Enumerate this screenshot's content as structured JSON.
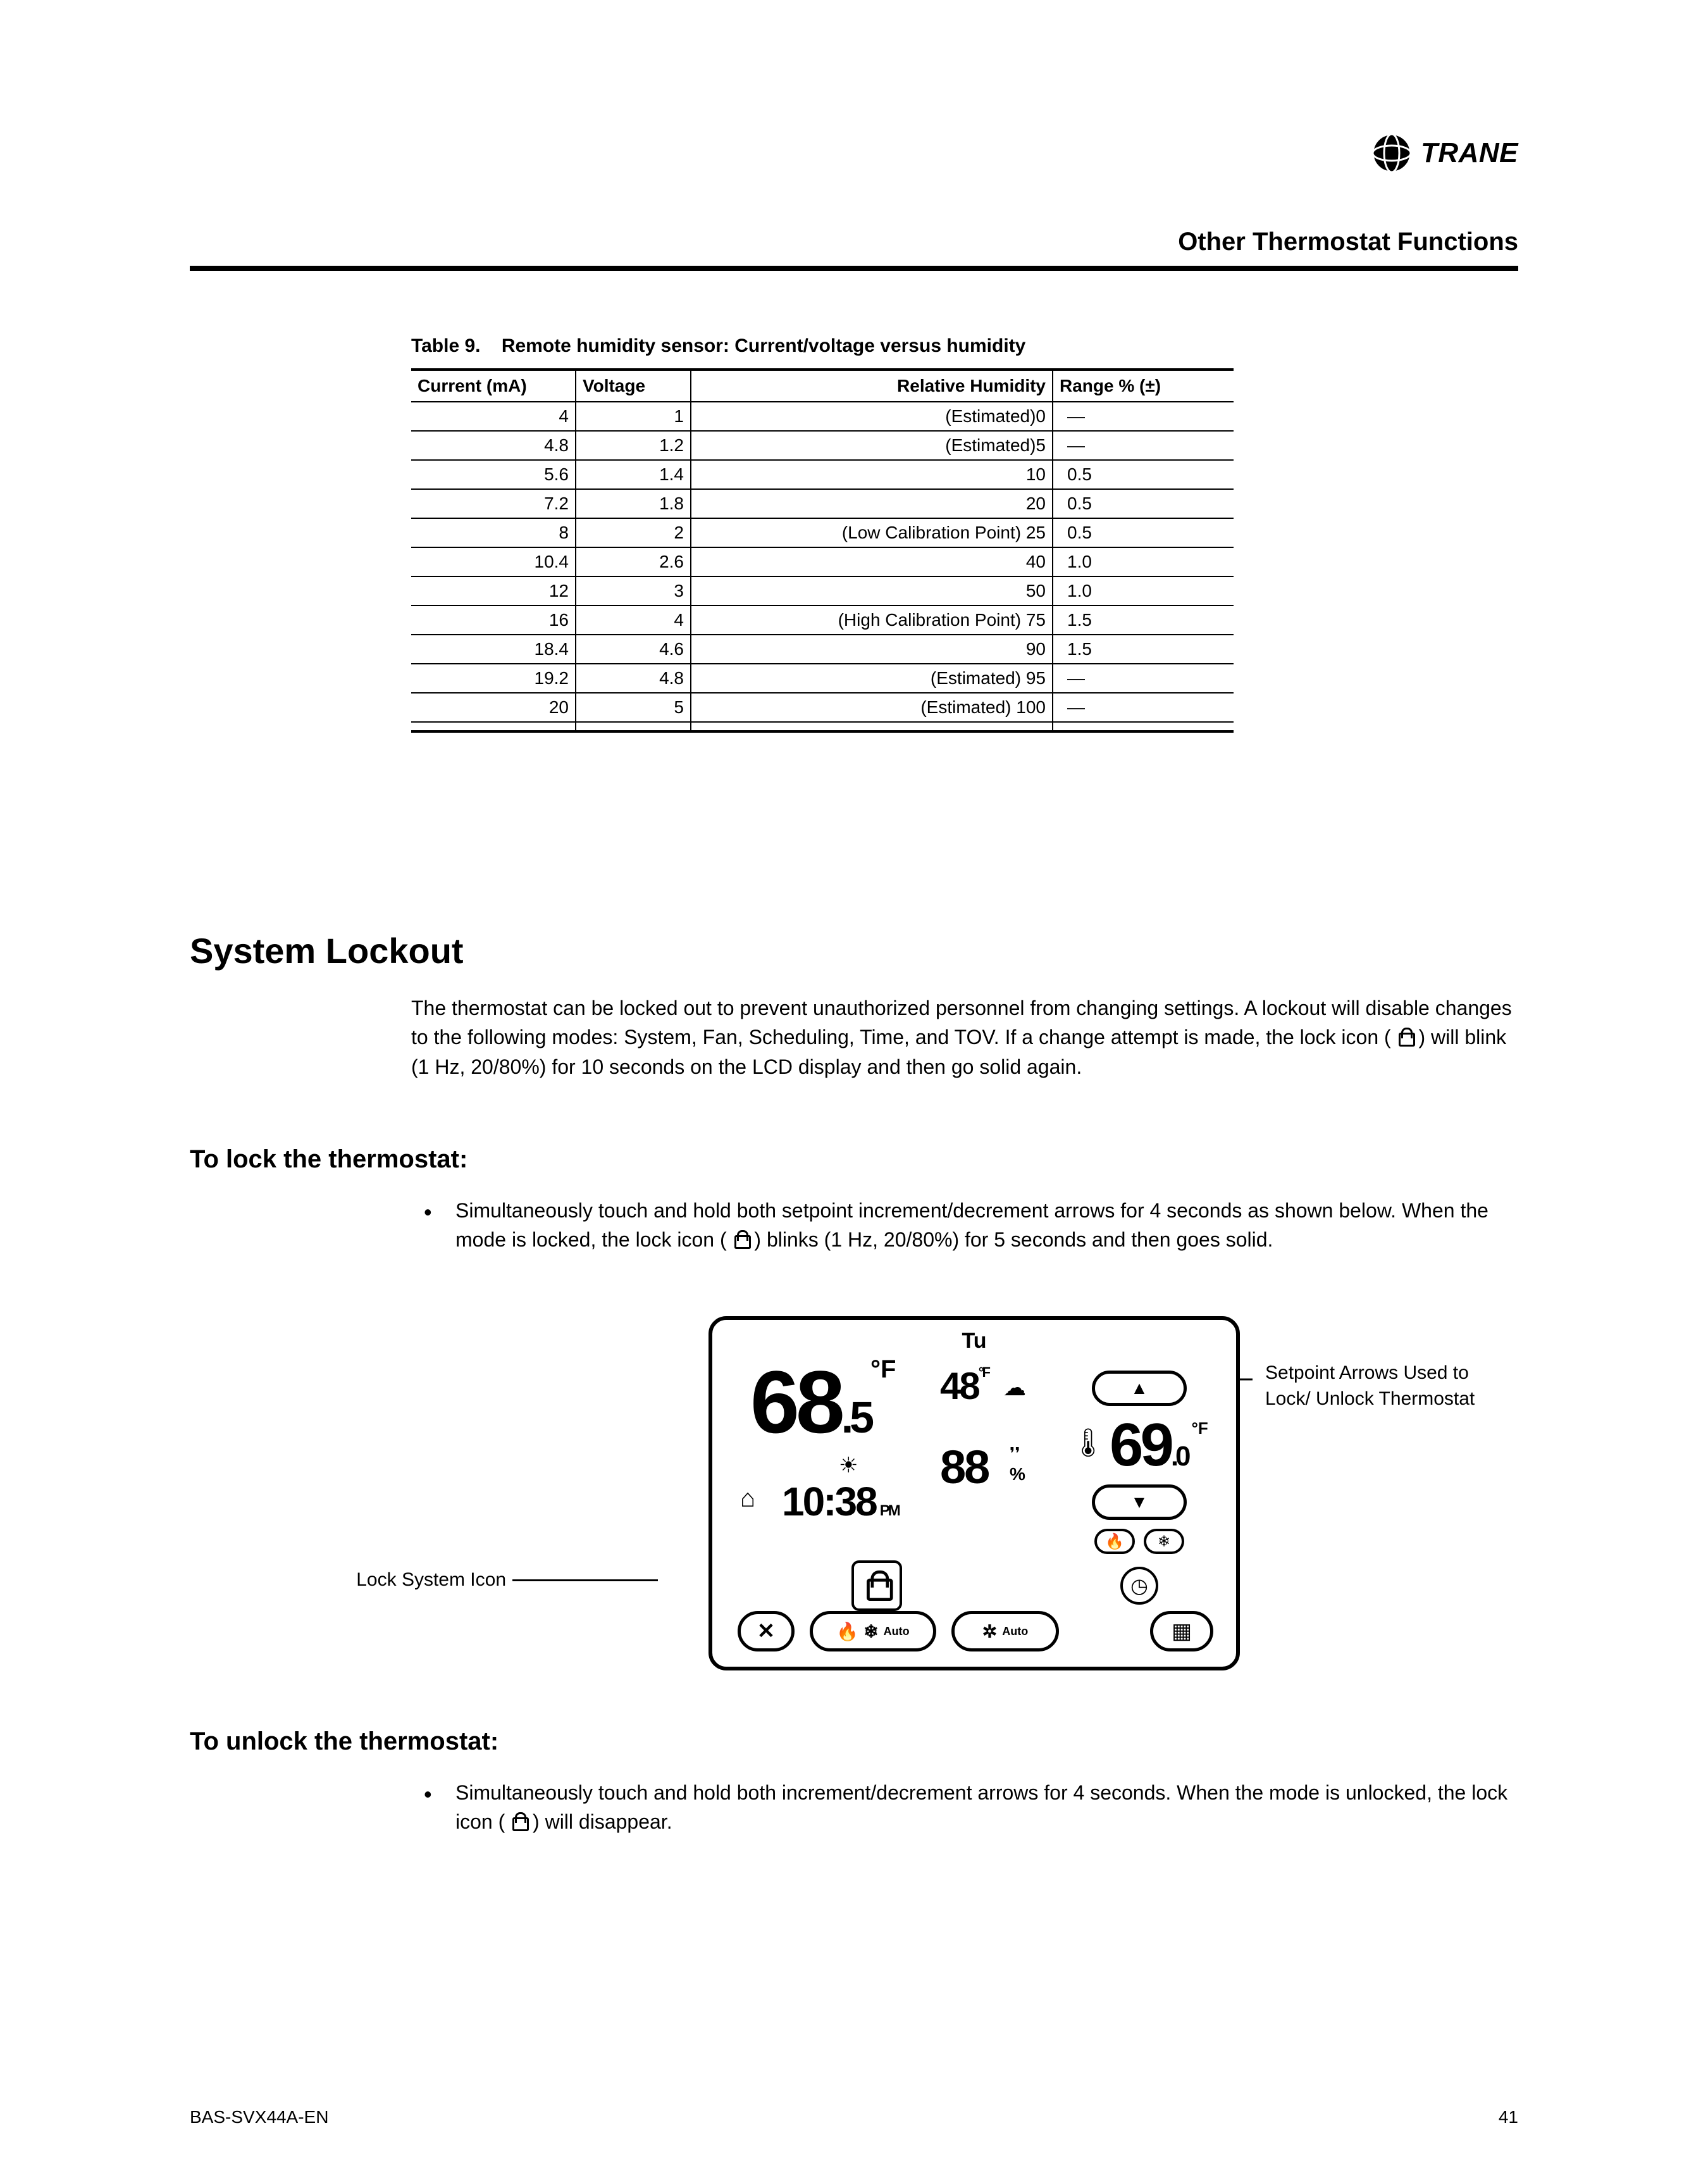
{
  "brand": {
    "name": "TRANE"
  },
  "header": {
    "section": "Other Thermostat Functions"
  },
  "table": {
    "caption_prefix": "Table 9.",
    "caption": "Remote humidity sensor: Current/voltage versus humidity",
    "columns": [
      "Current (mA)",
      "Voltage",
      "Relative Humidity",
      "Range % (±)"
    ],
    "rows": [
      [
        "4",
        "1",
        "(Estimated)0",
        "—"
      ],
      [
        "4.8",
        "1.2",
        "(Estimated)5",
        "—"
      ],
      [
        "5.6",
        "1.4",
        "10",
        "0.5"
      ],
      [
        "7.2",
        "1.8",
        "20",
        "0.5"
      ],
      [
        "8",
        "2",
        "(Low Calibration Point) 25",
        "0.5"
      ],
      [
        "10.4",
        "2.6",
        "40",
        "1.0"
      ],
      [
        "12",
        "3",
        "50",
        "1.0"
      ],
      [
        "16",
        "4",
        "(High Calibration Point) 75",
        "1.5"
      ],
      [
        "18.4",
        "4.6",
        "90",
        "1.5"
      ],
      [
        "19.2",
        "4.8",
        "(Estimated) 95",
        "—"
      ],
      [
        "20",
        "5",
        "(Estimated) 100",
        "—"
      ],
      [
        "",
        "",
        "",
        ""
      ]
    ]
  },
  "headings": {
    "h1": "System Lockout",
    "h2_lock": "To lock the thermostat:",
    "h2_unlock": "To unlock the thermostat:"
  },
  "paragraphs": {
    "intro_a": "The thermostat can be locked out to prevent unauthorized personnel from changing settings. A lockout will disable changes to the following modes: System, Fan, Scheduling, Time, and TOV. If a change attempt is made, the lock icon (",
    "intro_b": ") will blink (1 Hz, 20/80%) for 10 seconds on the LCD display and then go solid again.",
    "lock_a": "Simultaneously touch and hold both setpoint increment/decrement arrows for 4 seconds as shown below. When the mode is locked, the lock icon (",
    "lock_b": ") blinks (1 Hz, 20/80%) for 5 seconds and then goes solid.",
    "unlock_a": "Simultaneously touch and hold both increment/decrement arrows for 4 seconds. When the mode is unlocked, the lock icon (",
    "unlock_b": ") will disappear."
  },
  "annotations": {
    "left": "Lock System Icon",
    "right": "Setpoint Arrows Used to Lock/ Unlock Thermostat"
  },
  "lcd": {
    "day": "Tu",
    "room_temp": "68",
    "room_temp_dec": ".5",
    "room_unit": "°F",
    "outdoor_temp": "48",
    "outdoor_unit": "°F",
    "humidity": "88",
    "humidity_unit": "%",
    "time": "10:38",
    "ampm": "PM",
    "setpoint": "69",
    "setpoint_dec": ".0",
    "setpoint_unit": "°F",
    "auto_label": "Auto"
  },
  "footer": {
    "doc": "BAS-SVX44A-EN",
    "page": "41"
  },
  "colors": {
    "text": "#000000",
    "background": "#ffffff",
    "rule": "#000000",
    "table_border": "#000000"
  },
  "typography": {
    "body_pt": 11,
    "h1_pt": 20,
    "h2_pt": 14,
    "table_caption_pt": 10
  }
}
